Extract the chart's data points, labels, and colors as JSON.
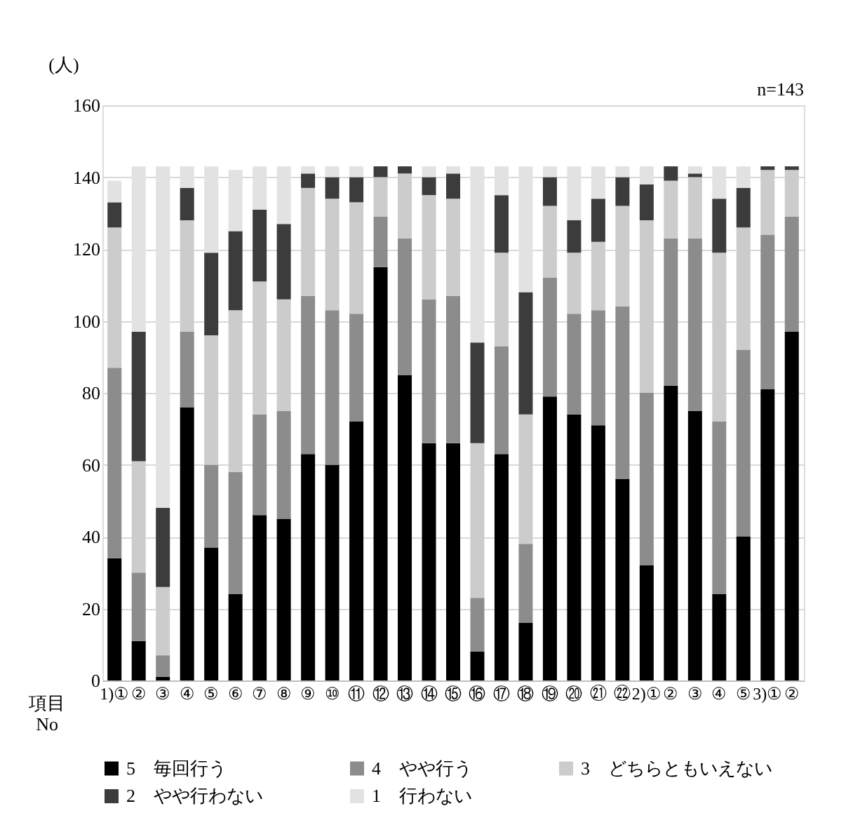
{
  "chart_data": {
    "type": "bar",
    "stacked": true,
    "ylabel": "(人)",
    "xlabel": "項目 No",
    "categories": [
      "1)①",
      "②",
      "③",
      "④",
      "⑤",
      "⑥",
      "⑦",
      "⑧",
      "⑨",
      "⑩",
      "⑪",
      "⑫",
      "⑬",
      "⑭",
      "⑮",
      "⑯",
      "⑰",
      "⑱",
      "⑲",
      "⑳",
      "㉑",
      "㉒",
      "2)①",
      "②",
      "③",
      "④",
      "⑤",
      "3)①",
      "②"
    ],
    "series": [
      {
        "name": "5　毎回行う",
        "color": "#000000",
        "values": [
          34,
          11,
          1,
          76,
          37,
          24,
          46,
          45,
          63,
          60,
          72,
          115,
          85,
          66,
          66,
          8,
          63,
          16,
          79,
          74,
          71,
          56,
          32,
          82,
          75,
          24,
          40,
          81,
          97
        ]
      },
      {
        "name": "4　やや行う",
        "color": "#8c8c8c",
        "values": [
          53,
          19,
          6,
          21,
          23,
          34,
          28,
          30,
          44,
          43,
          30,
          14,
          38,
          40,
          41,
          15,
          30,
          22,
          33,
          28,
          32,
          48,
          48,
          41,
          48,
          48,
          52,
          43,
          32
        ]
      },
      {
        "name": "3　どちらともいえない",
        "color": "#cccccc",
        "values": [
          39,
          31,
          19,
          31,
          36,
          45,
          37,
          31,
          30,
          31,
          31,
          11,
          18,
          29,
          27,
          43,
          26,
          36,
          20,
          17,
          19,
          28,
          48,
          16,
          17,
          47,
          34,
          18,
          13
        ]
      },
      {
        "name": "2　やや行わない",
        "color": "#3c3c3c",
        "values": [
          7,
          36,
          22,
          9,
          23,
          22,
          20,
          21,
          4,
          6,
          7,
          3,
          2,
          5,
          7,
          28,
          16,
          34,
          8,
          9,
          12,
          8,
          10,
          4,
          1,
          15,
          11,
          1,
          1
        ]
      },
      {
        "name": "1　行わない",
        "color": "#e2e2e2",
        "values": [
          6,
          46,
          95,
          6,
          24,
          17,
          12,
          16,
          2,
          3,
          3,
          0,
          0,
          3,
          2,
          49,
          8,
          35,
          3,
          15,
          9,
          3,
          5,
          0,
          2,
          9,
          6,
          0,
          0
        ]
      }
    ],
    "ylim": [
      0,
      160
    ],
    "yticks": [
      0,
      20,
      40,
      60,
      80,
      100,
      120,
      140,
      160
    ],
    "grid": "y",
    "legend": "bottom",
    "annotations": [
      "n=143"
    ]
  }
}
